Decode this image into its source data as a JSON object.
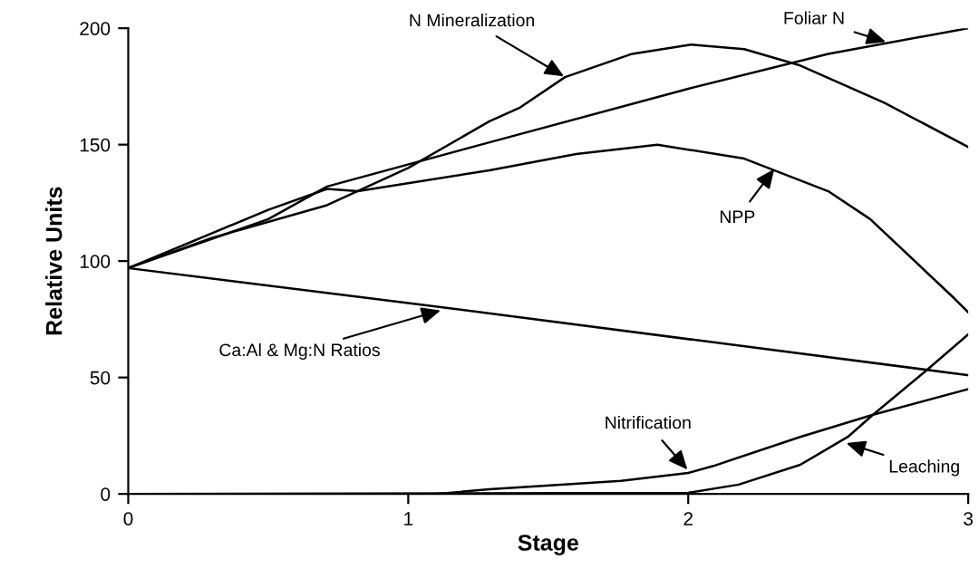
{
  "chart_data": {
    "type": "line",
    "xlabel": "Stage",
    "ylabel": "Relative Units",
    "xlim": [
      0,
      3
    ],
    "ylim": [
      0,
      200
    ],
    "xticks": [
      0,
      1,
      2,
      3
    ],
    "yticks": [
      0,
      50,
      100,
      150,
      200
    ],
    "grid": false,
    "legend": false,
    "marker": "none",
    "line_style": "solid",
    "series": [
      {
        "color": "#000000",
        "x": [
          0,
          0.5,
          0.71,
          1.29,
          2.0,
          2.5,
          3.0
        ],
        "values": [
          97,
          118,
          132,
          151,
          174,
          189,
          200
        ]
      },
      {
        "color": "#000000",
        "x": [
          0,
          0.3,
          0.71,
          1.0,
          1.29,
          1.4,
          1.56,
          1.8,
          2.01,
          2.2,
          2.4,
          2.7,
          3.0
        ],
        "values": [
          97,
          110,
          124,
          140,
          160,
          166,
          179,
          189,
          193,
          191,
          184,
          168,
          149
        ]
      },
      {
        "color": "#000000",
        "x": [
          0,
          0.5,
          0.71,
          0.82,
          1.29,
          1.6,
          1.89,
          2.2,
          2.5,
          2.65,
          2.95,
          3.0
        ],
        "values": [
          97,
          122,
          131,
          130,
          139,
          146,
          150,
          144,
          130,
          118,
          84,
          78
        ]
      },
      {
        "color": "#000000",
        "x": [
          0,
          1.0,
          3.0
        ],
        "values": [
          97,
          82,
          51
        ]
      },
      {
        "color": "#000000",
        "x": [
          0,
          1.1,
          1.29,
          1.76,
          2.0,
          2.09,
          2.4,
          2.66,
          3.0
        ],
        "values": [
          0,
          0,
          2,
          5.6,
          9,
          12,
          24.5,
          34,
          45
        ]
      },
      {
        "color": "#000000",
        "x": [
          0,
          2.0,
          2.18,
          2.4,
          2.57,
          2.66,
          2.85,
          3.0
        ],
        "values": [
          0,
          0.5,
          4,
          12.5,
          24.5,
          34,
          53,
          68.5
        ]
      }
    ],
    "annotations": [
      {
        "text": "N Mineralization",
        "x": 1.56,
        "y": 179
      },
      {
        "text": "Foliar N",
        "x": 2.71,
        "y": 194
      },
      {
        "text": "NPP",
        "x": 2.31,
        "y": 140
      },
      {
        "text": "Ca:Al & Mg:N Ratios",
        "x": 1.12,
        "y": 79
      },
      {
        "text": "Nitrification",
        "x": 2.0,
        "y": 10
      },
      {
        "text": "Leaching",
        "x": 2.56,
        "y": 22
      }
    ]
  }
}
